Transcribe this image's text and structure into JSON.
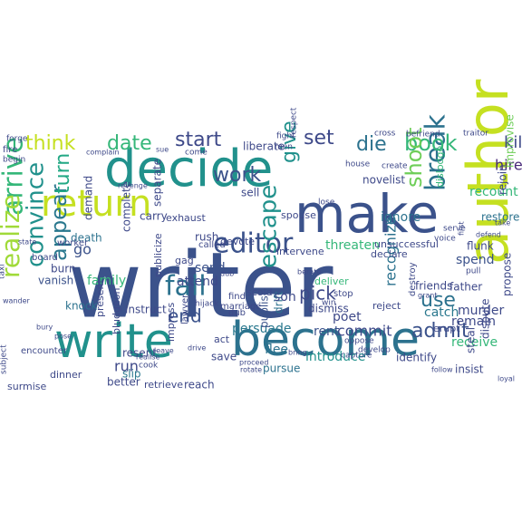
{
  "word_cloud": {
    "background": "#ffffff",
    "palette": [
      "#440154",
      "#3b528b",
      "#21918c",
      "#5ec962",
      "#fde725"
    ],
    "words": [
      {
        "text": "writer",
        "color": "#3b528b"
      },
      {
        "text": "decide",
        "color": "#21918c"
      },
      {
        "text": "author",
        "color": "#c5e021"
      },
      {
        "text": "make",
        "color": "#3b528b"
      },
      {
        "text": "write",
        "color": "#21918c"
      },
      {
        "text": "become",
        "color": "#2c728e"
      },
      {
        "text": "return",
        "color": "#c5e021"
      },
      {
        "text": "editor",
        "color": "#3b528b"
      },
      {
        "text": "fall",
        "color": "#2c728e"
      },
      {
        "text": "arrive",
        "color": "#35b779"
      },
      {
        "text": "realize",
        "color": "#a0da39"
      },
      {
        "text": "break",
        "color": "#2c728e"
      },
      {
        "text": "convince",
        "color": "#21918c"
      },
      {
        "text": "escape",
        "color": "#21918c"
      },
      {
        "text": "appear",
        "color": "#2a788e"
      },
      {
        "text": "book",
        "color": "#35b779"
      },
      {
        "text": "think",
        "color": "#c5e021"
      },
      {
        "text": "date",
        "color": "#35b779"
      },
      {
        "text": "start",
        "color": "#3e4989"
      },
      {
        "text": "work",
        "color": "#3b528b"
      },
      {
        "text": "give",
        "color": "#21918c"
      },
      {
        "text": "set",
        "color": "#3e4989"
      },
      {
        "text": "die",
        "color": "#2c728e"
      },
      {
        "text": "shoot",
        "color": "#6ece58"
      },
      {
        "text": "turn",
        "color": "#22a884"
      },
      {
        "text": "end",
        "color": "#3b528b"
      },
      {
        "text": "use",
        "color": "#2c728e"
      },
      {
        "text": "admit",
        "color": "#3b528b"
      },
      {
        "text": "kill",
        "color": "#3e4989"
      },
      {
        "text": "hire",
        "color": "#482878"
      },
      {
        "text": "recount",
        "color": "#35b779"
      },
      {
        "text": "pick",
        "color": "#3e4989"
      },
      {
        "text": "recognize",
        "color": "#2c728e"
      },
      {
        "text": "run",
        "color": "#3e4989"
      },
      {
        "text": "commit",
        "color": "#3e4989"
      },
      {
        "text": "introduce",
        "color": "#21918c"
      },
      {
        "text": "persuade",
        "color": "#2a788e"
      },
      {
        "text": "family",
        "color": "#35b779"
      },
      {
        "text": "go",
        "color": "#3b528b"
      },
      {
        "text": "send",
        "color": "#3b528b"
      },
      {
        "text": "attend",
        "color": "#3e4989"
      },
      {
        "text": "publish",
        "color": "#3b528b"
      },
      {
        "text": "drift",
        "color": "#2c728e"
      },
      {
        "text": "poet",
        "color": "#3e4989"
      },
      {
        "text": "rent",
        "color": "#3b528b"
      },
      {
        "text": "son",
        "color": "#3e4989"
      },
      {
        "text": "flee",
        "color": "#2c728e"
      },
      {
        "text": "threaten",
        "color": "#35b779"
      },
      {
        "text": "spend",
        "color": "#3b528b"
      },
      {
        "text": "catch",
        "color": "#2a788e"
      },
      {
        "text": "murder",
        "color": "#3e4989"
      },
      {
        "text": "remain",
        "color": "#3e4989"
      },
      {
        "text": "receive",
        "color": "#35b779"
      },
      {
        "text": "ignore",
        "color": "#2c728e"
      },
      {
        "text": "separate",
        "color": "#3e4989"
      },
      {
        "text": "carry",
        "color": "#3e4989"
      },
      {
        "text": "complete",
        "color": "#3e4989"
      },
      {
        "text": "demand",
        "color": "#3e4989"
      },
      {
        "text": "death",
        "color": "#2c728e"
      },
      {
        "text": "burn",
        "color": "#3e4989"
      },
      {
        "text": "vanish",
        "color": "#3b528b"
      },
      {
        "text": "knock",
        "color": "#2c728e"
      },
      {
        "text": "instruct",
        "color": "#3e4989"
      },
      {
        "text": "resent",
        "color": "#3e4989"
      },
      {
        "text": "slip",
        "color": "#2a788e"
      },
      {
        "text": "better",
        "color": "#3e4989"
      },
      {
        "text": "reach",
        "color": "#3e4989"
      },
      {
        "text": "save",
        "color": "#3e4989"
      },
      {
        "text": "pursue",
        "color": "#2c728e"
      },
      {
        "text": "identify",
        "color": "#3e4989"
      },
      {
        "text": "insist",
        "color": "#3e4989"
      },
      {
        "text": "steal",
        "color": "#3e4989"
      },
      {
        "text": "dispute",
        "color": "#3e4989"
      },
      {
        "text": "propose",
        "color": "#3e4989"
      },
      {
        "text": "liberate",
        "color": "#3e4989"
      },
      {
        "text": "sell",
        "color": "#3e4989"
      },
      {
        "text": "rush",
        "color": "#3e4989"
      },
      {
        "text": "novelist",
        "color": "#3e4989"
      },
      {
        "text": "dismiss",
        "color": "#3e4989"
      },
      {
        "text": "father",
        "color": "#3e4989"
      },
      {
        "text": "friends",
        "color": "#3e4989"
      },
      {
        "text": "dislodge",
        "color": "#35b779"
      },
      {
        "text": "restore",
        "color": "#2c728e"
      },
      {
        "text": "rejoin",
        "color": "#3e4989"
      },
      {
        "text": "improvise",
        "color": "#6ece58"
      },
      {
        "text": "flunk",
        "color": "#3e4989"
      },
      {
        "text": "unsuccessful",
        "color": "#3e4989"
      },
      {
        "text": "spouse",
        "color": "#3e4989"
      },
      {
        "text": "devote",
        "color": "#3e4989"
      },
      {
        "text": "gag",
        "color": "#3e4989"
      },
      {
        "text": "publicize",
        "color": "#3e4989"
      },
      {
        "text": "impress",
        "color": "#3e4989"
      },
      {
        "text": "exhaust",
        "color": "#3e4989"
      },
      {
        "text": "called",
        "color": "#3e4989"
      },
      {
        "text": "intervene",
        "color": "#3e4989"
      },
      {
        "text": "declare",
        "color": "#3e4989"
      },
      {
        "text": "deliver",
        "color": "#35b779"
      },
      {
        "text": "stop",
        "color": "#3e4989"
      },
      {
        "text": "reject",
        "color": "#3e4989"
      },
      {
        "text": "erupt",
        "color": "#3e4989"
      },
      {
        "text": "destroy",
        "color": "#3e4989"
      },
      {
        "text": "present",
        "color": "#3e4989"
      },
      {
        "text": "bludgeon",
        "color": "#3e4989"
      },
      {
        "text": "dinner",
        "color": "#3e4989"
      },
      {
        "text": "retrieve",
        "color": "#3e4989"
      },
      {
        "text": "surmise",
        "color": "#3e4989"
      },
      {
        "text": "marriage",
        "color": "#3e4989"
      },
      {
        "text": "scold",
        "color": "#3e4989"
      },
      {
        "text": "lawyer",
        "color": "#3e4989"
      },
      {
        "text": "act",
        "color": "#3e4989"
      },
      {
        "text": "dub",
        "color": "#3e4989"
      },
      {
        "text": "find",
        "color": "#3e4989"
      },
      {
        "text": "hijack",
        "color": "#3e4989"
      },
      {
        "text": "board",
        "color": "#3e4989"
      },
      {
        "text": "worker",
        "color": "#3e4989"
      },
      {
        "text": "encounter",
        "color": "#3e4989"
      },
      {
        "text": "forge",
        "color": "#3e4989"
      },
      {
        "text": "fire",
        "color": "#3e4989"
      },
      {
        "text": "begin",
        "color": "#3e4989"
      },
      {
        "text": "cross",
        "color": "#3e4989"
      },
      {
        "text": "befriend",
        "color": "#3e4989"
      },
      {
        "text": "traitor",
        "color": "#3e4989"
      },
      {
        "text": "fight",
        "color": "#3e4989"
      },
      {
        "text": "men",
        "color": "#3e4989"
      },
      {
        "text": "respect",
        "color": "#3e4989"
      },
      {
        "text": "house",
        "color": "#3e4989"
      },
      {
        "text": "come",
        "color": "#3e4989"
      },
      {
        "text": "sue",
        "color": "#3e4989"
      },
      {
        "text": "create",
        "color": "#3e4989"
      },
      {
        "text": "lose",
        "color": "#3e4989"
      },
      {
        "text": "serve",
        "color": "#3e4989"
      },
      {
        "text": "voice",
        "color": "#3e4989"
      },
      {
        "text": "pull",
        "color": "#3e4989"
      },
      {
        "text": "develop",
        "color": "#3e4989"
      },
      {
        "text": "capture",
        "color": "#3e4989"
      },
      {
        "text": "oppose",
        "color": "#3e4989"
      },
      {
        "text": "taxi",
        "color": "#3e4989"
      },
      {
        "text": "wander",
        "color": "#3e4989"
      },
      {
        "text": "subject",
        "color": "#3e4989"
      },
      {
        "text": "state",
        "color": "#3e4989"
      },
      {
        "text": "revenge",
        "color": "#3e4989"
      },
      {
        "text": "complain",
        "color": "#3e4989"
      },
      {
        "text": "realise",
        "color": "#3e4989"
      },
      {
        "text": "cook",
        "color": "#3e4989"
      },
      {
        "text": "leave",
        "color": "#3e4989"
      },
      {
        "text": "drive",
        "color": "#3e4989"
      },
      {
        "text": "rotate",
        "color": "#3e4989"
      },
      {
        "text": "loyal",
        "color": "#3e4989"
      },
      {
        "text": "take",
        "color": "#3e4989"
      },
      {
        "text": "defend",
        "color": "#3e4989"
      },
      {
        "text": "first",
        "color": "#3e4989"
      },
      {
        "text": "dub",
        "color": "#3e4989"
      },
      {
        "text": "bury",
        "color": "#3e4989"
      },
      {
        "text": "pose",
        "color": "#3e4989"
      },
      {
        "text": "berate",
        "color": "#3e4989"
      },
      {
        "text": "win",
        "color": "#3e4989"
      },
      {
        "text": "bring",
        "color": "#3e4989"
      },
      {
        "text": "grant",
        "color": "#3e4989"
      },
      {
        "text": "follow",
        "color": "#3e4989"
      },
      {
        "text": "proceed",
        "color": "#3e4989"
      }
    ]
  }
}
